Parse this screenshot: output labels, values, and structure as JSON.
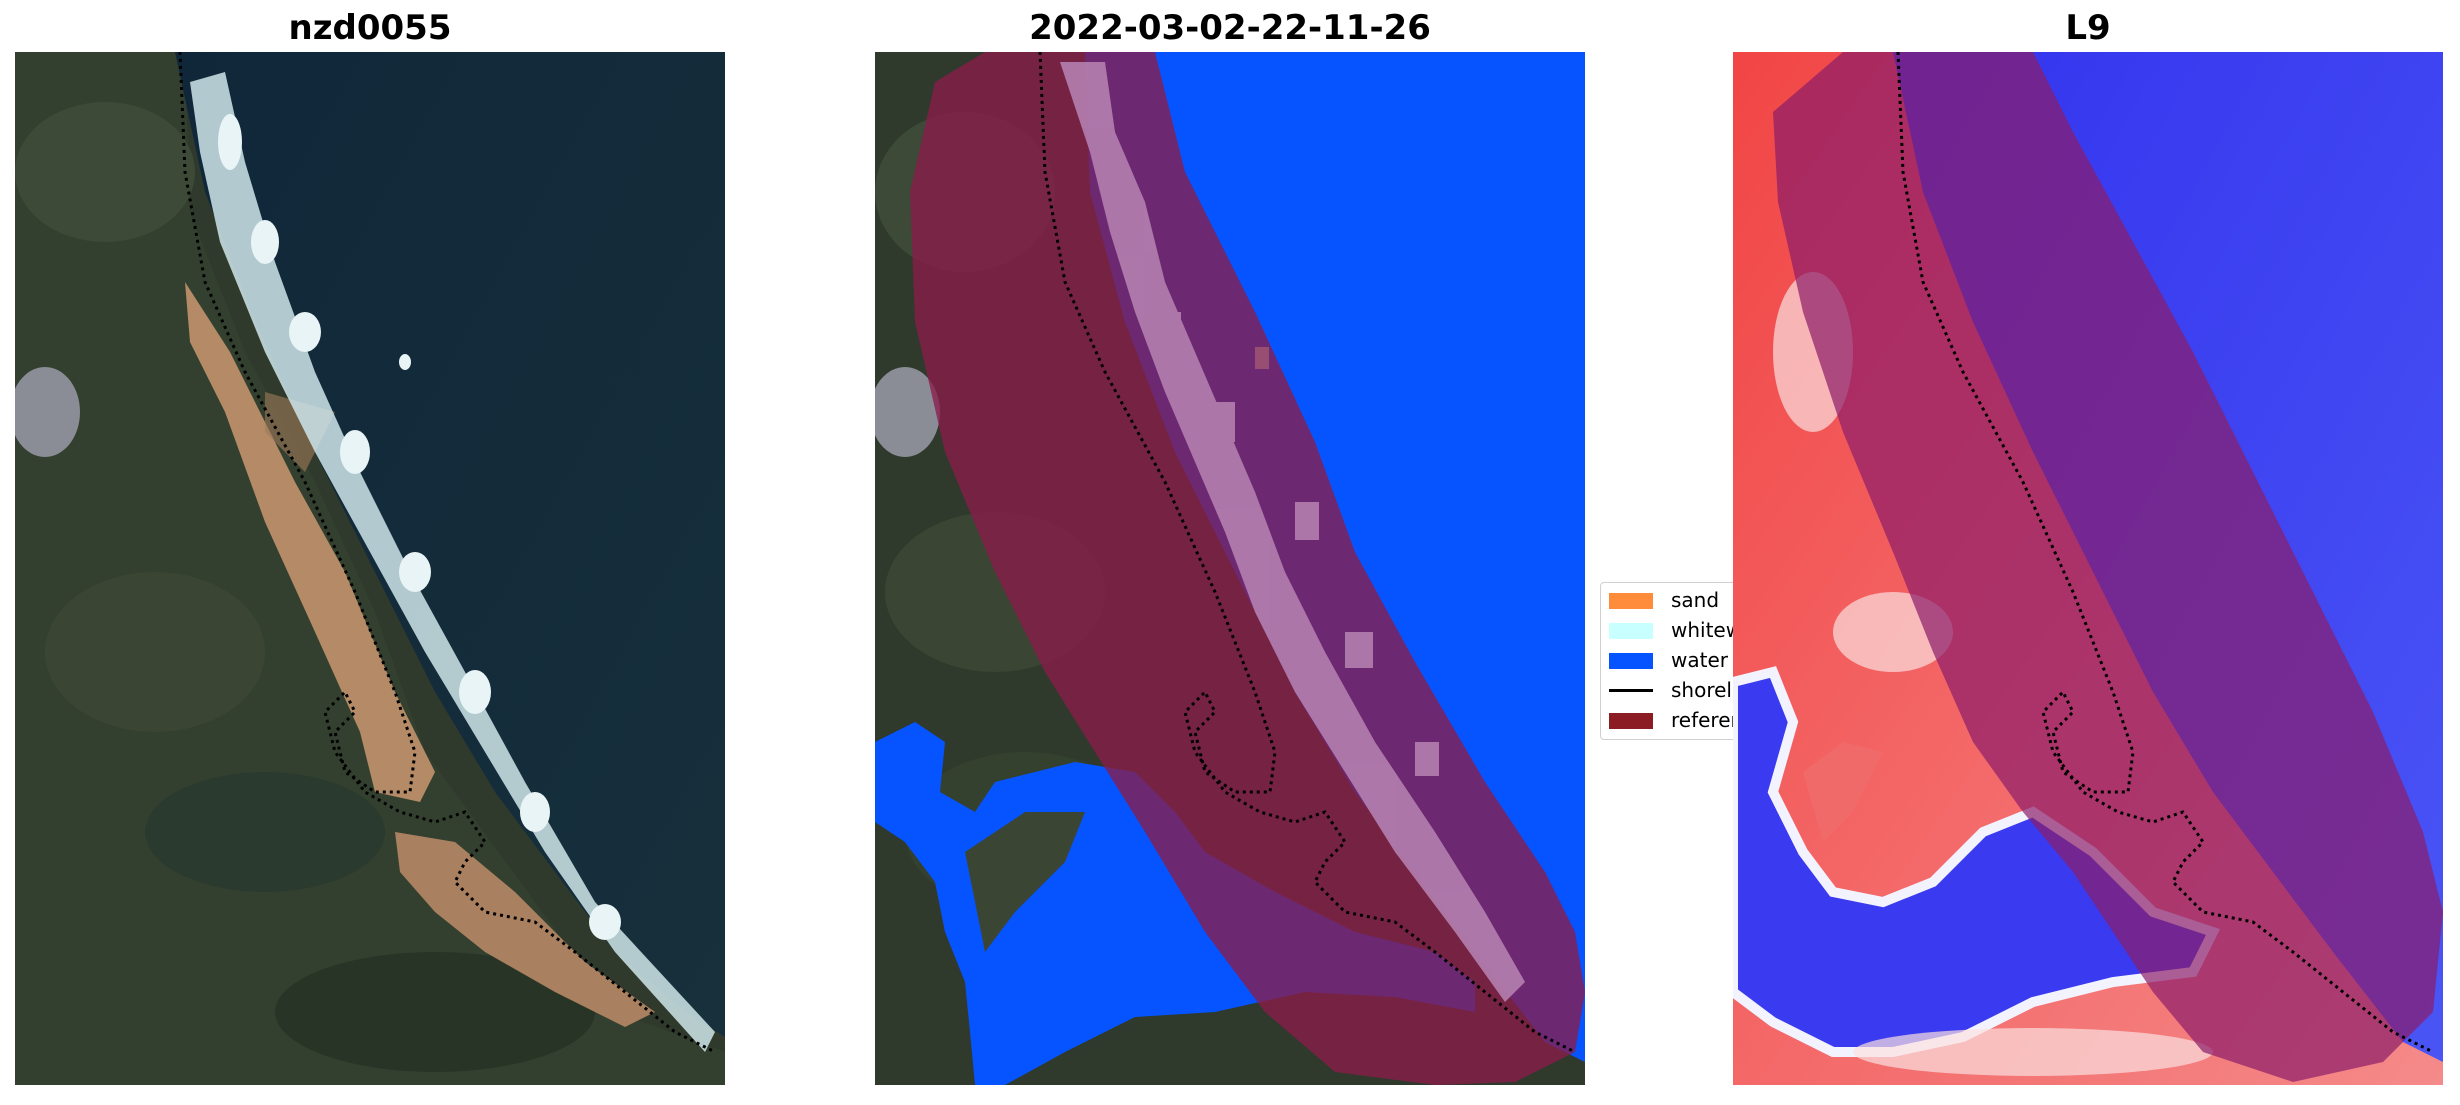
{
  "titles": {
    "left": "nzd0055",
    "middle": "2022-03-02-22-11-26",
    "right": "L9"
  },
  "legend": {
    "items": [
      {
        "label": "sand",
        "kind": "patch",
        "color": "#ff8c3a"
      },
      {
        "label": "whitew",
        "kind": "patch",
        "color": "#c8ffff"
      },
      {
        "label": "water",
        "kind": "patch",
        "color": "#0554ff"
      },
      {
        "label": "shorel",
        "kind": "line",
        "color": "#000000"
      },
      {
        "label": "referen",
        "kind": "patch",
        "color": "#8b1c24"
      }
    ]
  },
  "colors": {
    "satellite_land": "#2e3a2a",
    "satellite_sea": "#132a36",
    "sand_beach": "#b58a66",
    "whitewater": "#cfe8ee",
    "water_class": "#0554ff",
    "reference_buffer": "#7a1530",
    "index_land": "#f25a5a",
    "index_water": "#2b2ef0"
  }
}
